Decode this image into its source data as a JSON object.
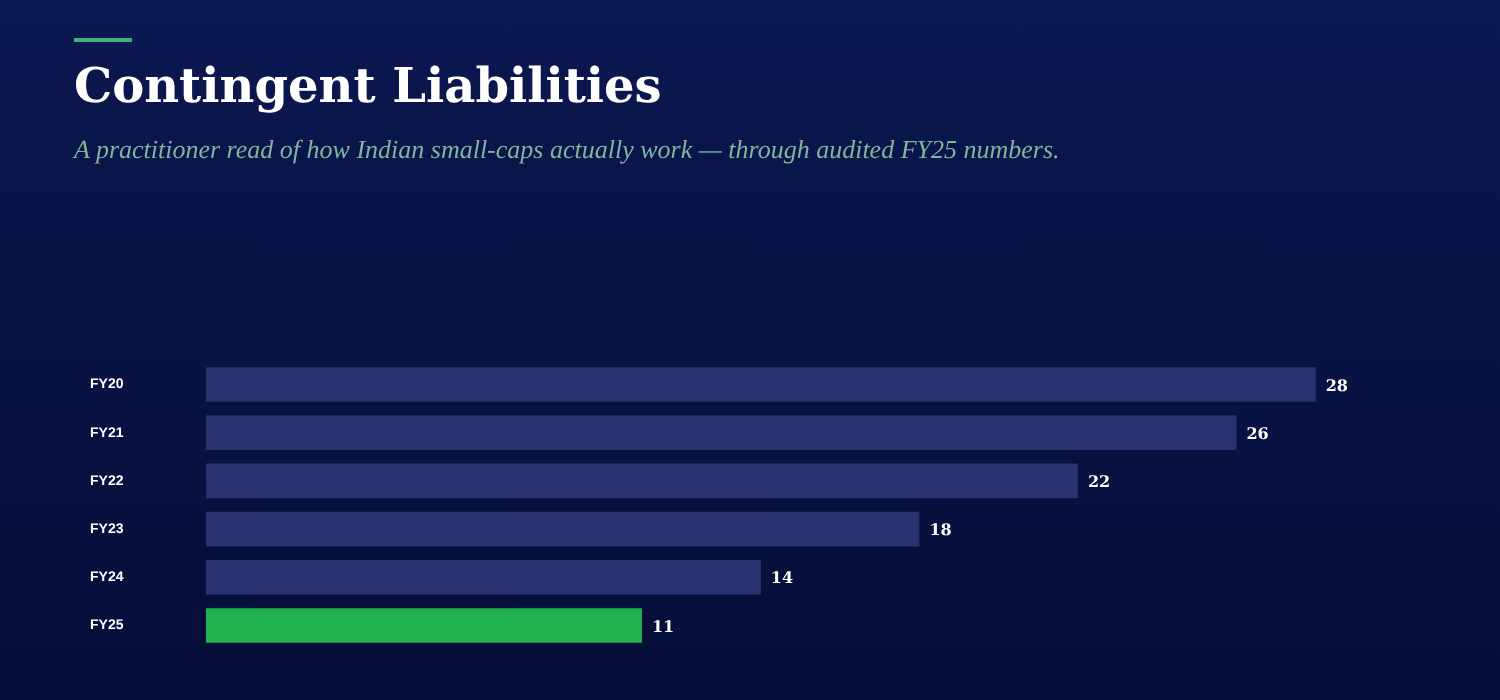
{
  "chart_data": {
    "type": "bar",
    "orientation": "horizontal",
    "title": "Contingent Liabilities",
    "subtitle": "A practitioner read of how Indian small-caps actually work — through audited FY25 numbers.",
    "categories": [
      "FY20",
      "FY21",
      "FY22",
      "FY23",
      "FY24",
      "FY25"
    ],
    "values": [
      28,
      26,
      22,
      18,
      14,
      11
    ],
    "colors": [
      "#283270",
      "#283270",
      "#283270",
      "#283270",
      "#283270",
      "#22b14f"
    ],
    "data_labels": true
  }
}
